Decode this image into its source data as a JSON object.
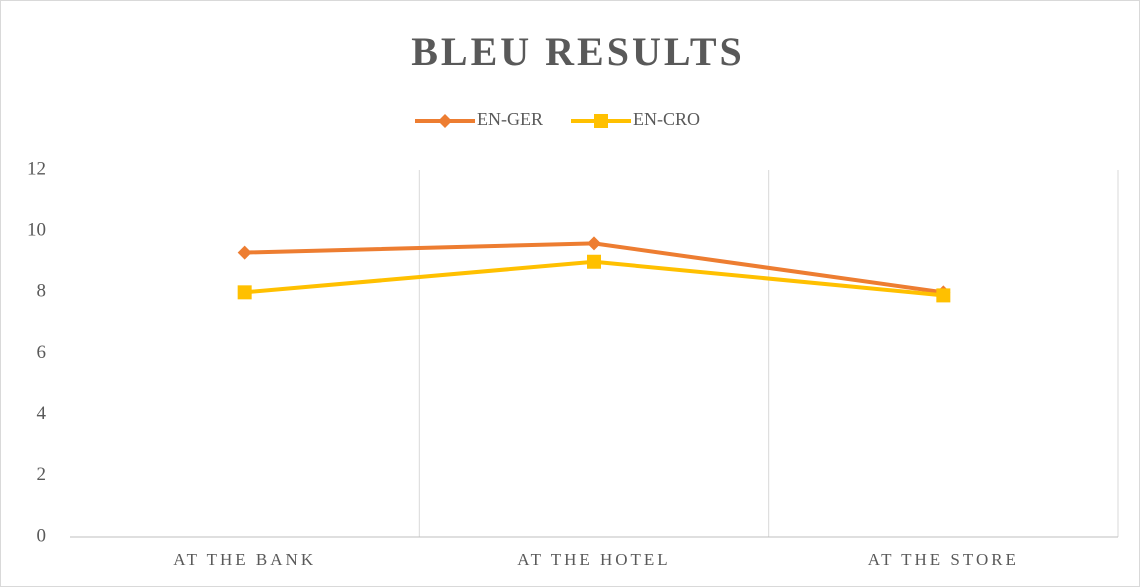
{
  "chart_data": {
    "type": "line",
    "title": "BLEU RESULTS",
    "categories": [
      "AT THE BANK",
      "AT THE HOTEL",
      "AT THE STORE"
    ],
    "series": [
      {
        "name": "EN-GER",
        "color": "#ED7D31",
        "marker": "diamond",
        "values": [
          9.3,
          9.6,
          8.0
        ]
      },
      {
        "name": "EN-CRO",
        "color": "#FFC000",
        "marker": "square",
        "values": [
          8.0,
          9.0,
          7.9
        ]
      }
    ],
    "ylim": [
      0,
      12
    ],
    "yticks": [
      0,
      2,
      4,
      6,
      8,
      10,
      12
    ],
    "grid": true,
    "legend": "top"
  }
}
